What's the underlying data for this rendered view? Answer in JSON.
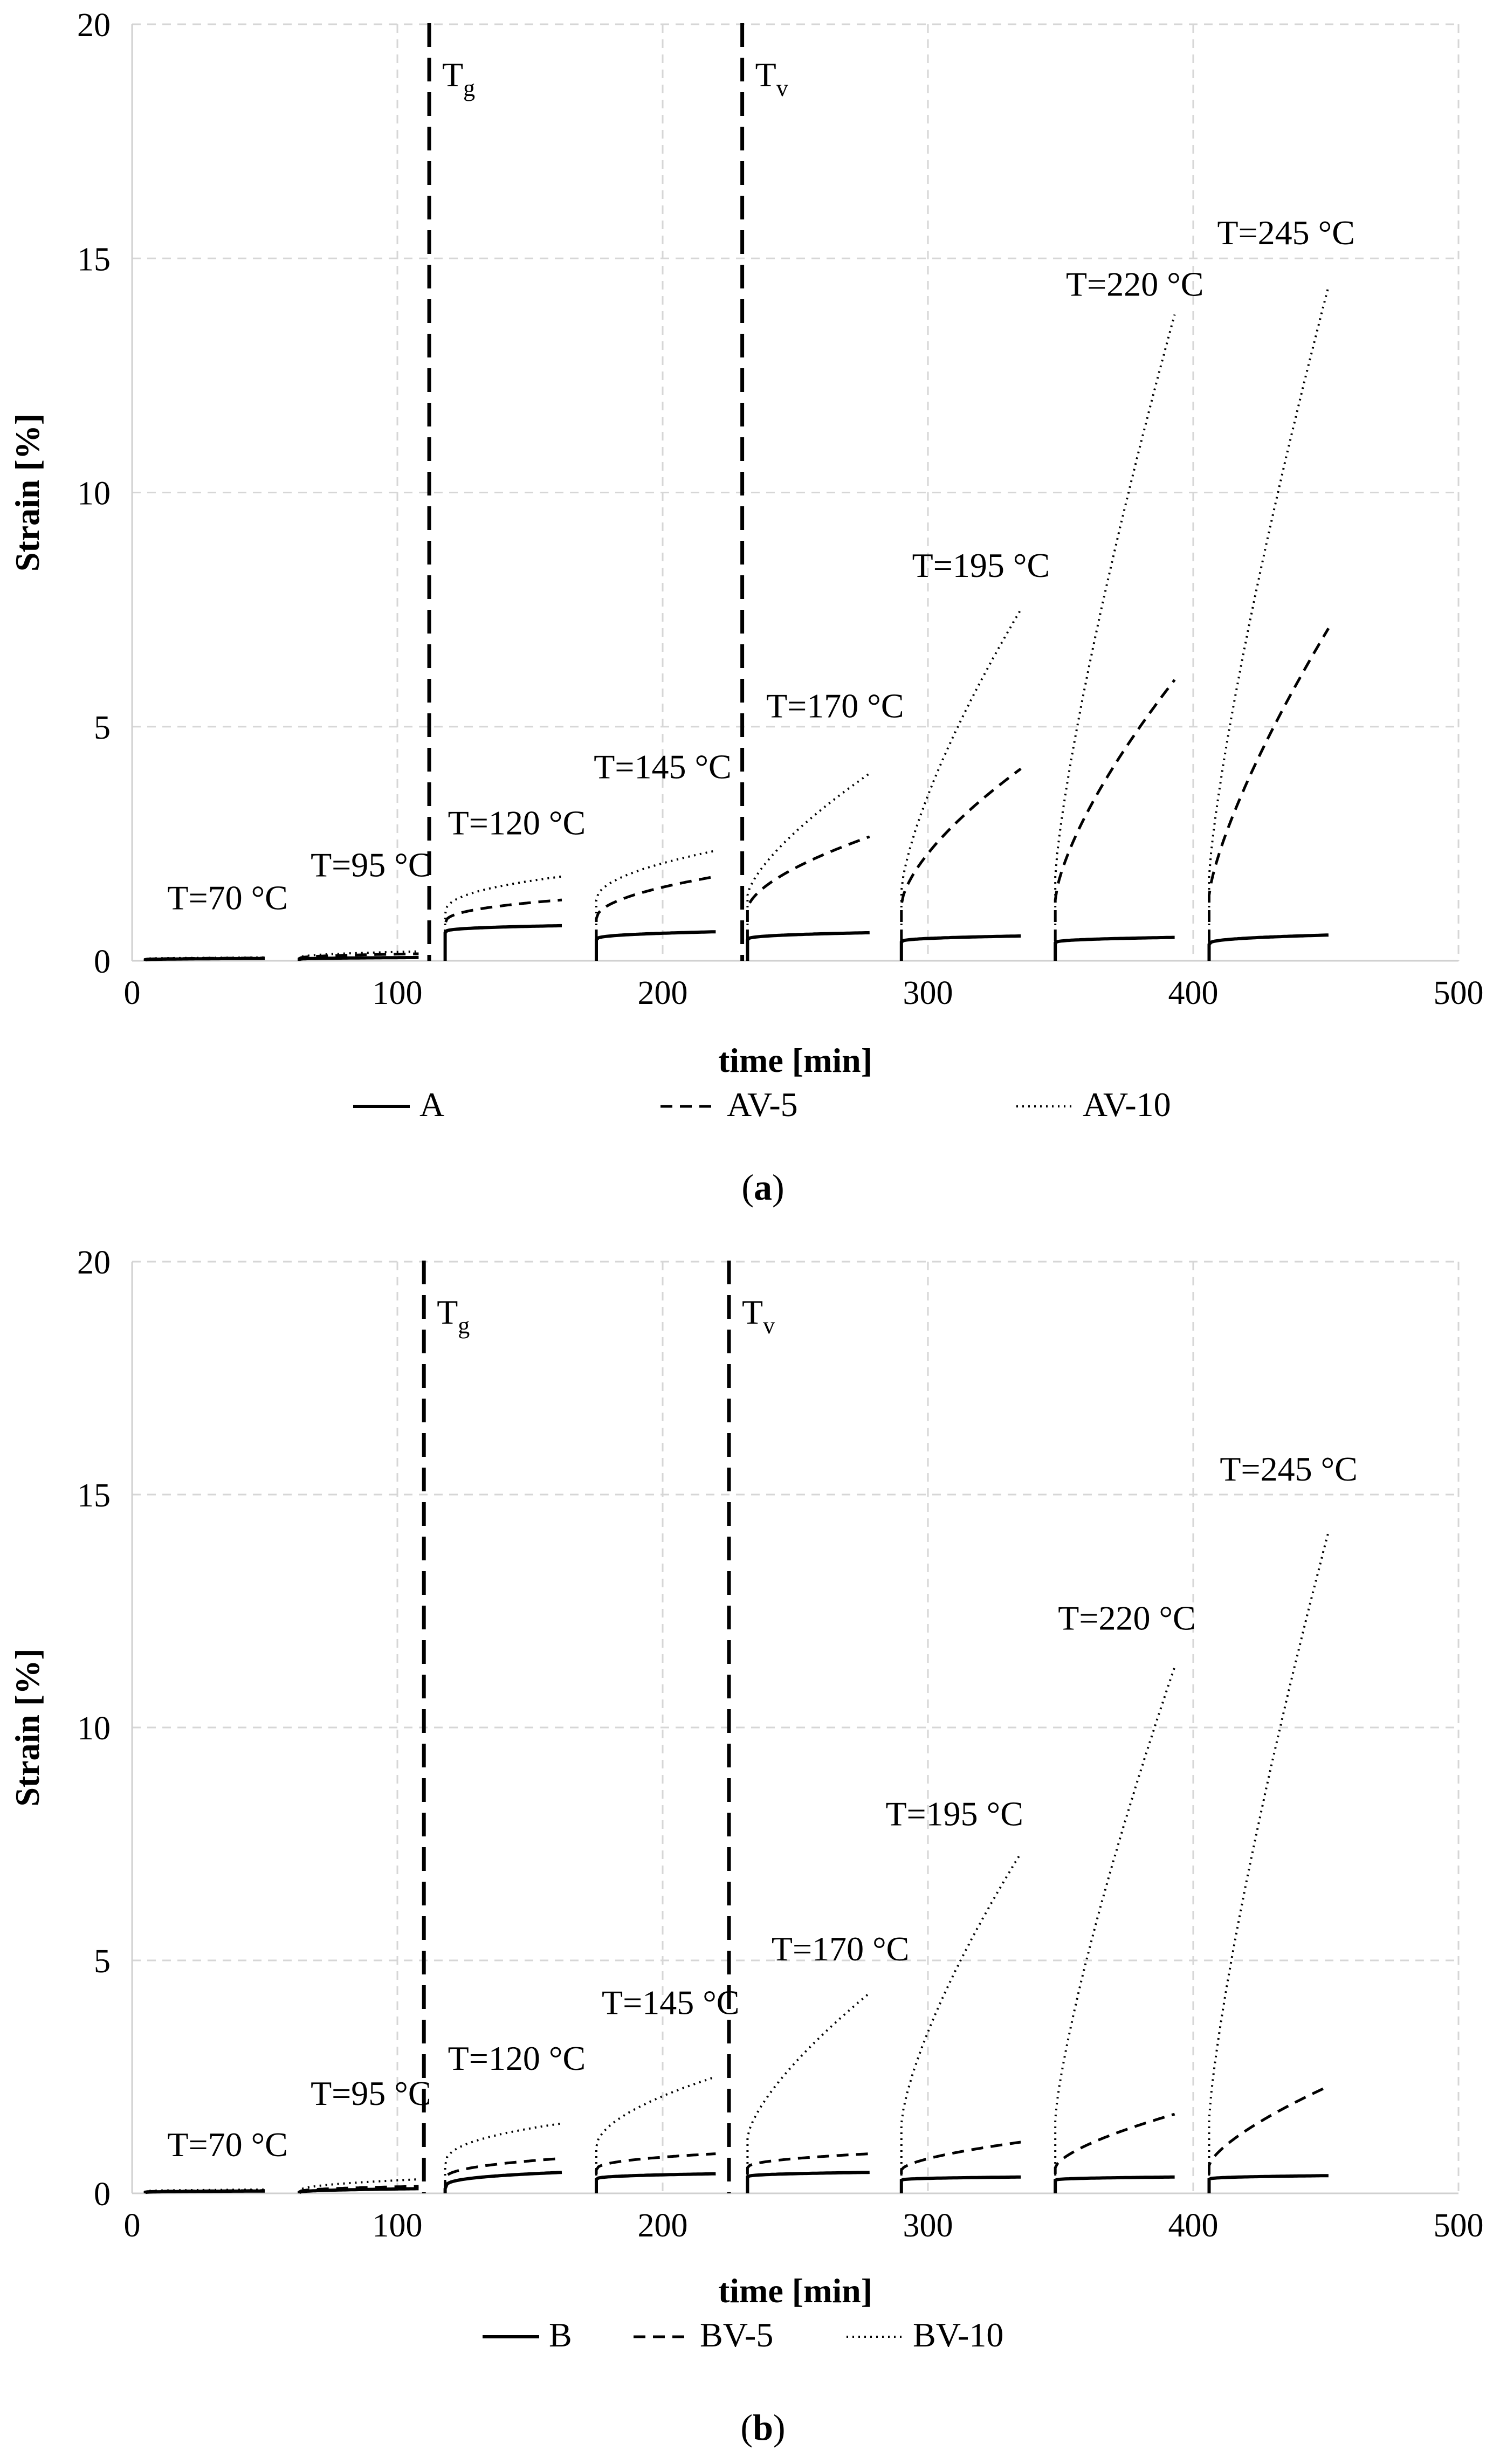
{
  "chart_data": [
    {
      "type": "line",
      "caption_letter": "a",
      "xlabel": "time [min]",
      "ylabel": "Strain [%]",
      "xlim": [
        0,
        500
      ],
      "ylim": [
        0,
        20
      ],
      "x_ticks": [
        0,
        100,
        200,
        300,
        400,
        500
      ],
      "y_ticks": [
        0,
        5,
        10,
        15,
        20
      ],
      "x_tick_labels": [
        "0",
        "100",
        "200",
        "300",
        "400",
        "500"
      ],
      "y_tick_labels": [
        "0",
        "5",
        "10",
        "15",
        "20"
      ],
      "grid": true,
      "vertical_lines": [
        {
          "x": 112,
          "label": "T",
          "subscript": "g"
        },
        {
          "x": 230,
          "label": "T",
          "subscript": "v"
        }
      ],
      "annotations": [
        {
          "text": "T=70 °C",
          "x": 36,
          "y": 1.1
        },
        {
          "text": "T=95 °C",
          "x": 90,
          "y": 1.8
        },
        {
          "text": "T=120 °C",
          "x": 145,
          "y": 2.7
        },
        {
          "text": "T=145 °C",
          "x": 200,
          "y": 3.9
        },
        {
          "text": "T=170 °C",
          "x": 265,
          "y": 5.2
        },
        {
          "text": "T=195 °C",
          "x": 320,
          "y": 8.2
        },
        {
          "text": "T=220 °C",
          "x": 378,
          "y": 14.2
        },
        {
          "text": "T=245 °C",
          "x": 435,
          "y": 15.3
        }
      ],
      "legend_position": "bottom",
      "series": [
        {
          "name": "A",
          "style": "solid",
          "segments": [
            {
              "x_start": 5,
              "x_end": 50,
              "y_start": 0.02,
              "y_end": 0.05,
              "exp": 0.35
            },
            {
              "x_start": 63,
              "x_end": 108,
              "y_start": 0.03,
              "y_end": 0.07,
              "exp": 0.35
            },
            {
              "x_start": 118,
              "x_end": 162,
              "y_start": 0.6,
              "y_end": 0.75,
              "exp": 0.3
            },
            {
              "x_start": 175,
              "x_end": 220,
              "y_start": 0.45,
              "y_end": 0.62,
              "exp": 0.35
            },
            {
              "x_start": 232,
              "x_end": 278,
              "y_start": 0.45,
              "y_end": 0.6,
              "exp": 0.35
            },
            {
              "x_start": 290,
              "x_end": 335,
              "y_start": 0.4,
              "y_end": 0.53,
              "exp": 0.35
            },
            {
              "x_start": 348,
              "x_end": 393,
              "y_start": 0.38,
              "y_end": 0.5,
              "exp": 0.35
            },
            {
              "x_start": 406,
              "x_end": 451,
              "y_start": 0.35,
              "y_end": 0.55,
              "exp": 0.35
            }
          ]
        },
        {
          "name": "AV-5",
          "style": "dashed",
          "segments": [
            {
              "x_start": 5,
              "x_end": 50,
              "y_start": 0.03,
              "y_end": 0.06,
              "exp": 0.35
            },
            {
              "x_start": 63,
              "x_end": 108,
              "y_start": 0.05,
              "y_end": 0.15,
              "exp": 0.4
            },
            {
              "x_start": 118,
              "x_end": 162,
              "y_start": 0.8,
              "y_end": 1.3,
              "exp": 0.4
            },
            {
              "x_start": 175,
              "x_end": 220,
              "y_start": 0.9,
              "y_end": 1.8,
              "exp": 0.5
            },
            {
              "x_start": 232,
              "x_end": 278,
              "y_start": 1.1,
              "y_end": 2.65,
              "exp": 0.6
            },
            {
              "x_start": 290,
              "x_end": 335,
              "y_start": 1.2,
              "y_end": 4.1,
              "exp": 0.65
            },
            {
              "x_start": 348,
              "x_end": 393,
              "y_start": 1.3,
              "y_end": 6.0,
              "exp": 0.7
            },
            {
              "x_start": 406,
              "x_end": 451,
              "y_start": 1.4,
              "y_end": 7.1,
              "exp": 0.75
            }
          ]
        },
        {
          "name": "AV-10",
          "style": "dotted",
          "segments": [
            {
              "x_start": 5,
              "x_end": 50,
              "y_start": 0.04,
              "y_end": 0.07,
              "exp": 0.35
            },
            {
              "x_start": 63,
              "x_end": 108,
              "y_start": 0.06,
              "y_end": 0.2,
              "exp": 0.4
            },
            {
              "x_start": 118,
              "x_end": 162,
              "y_start": 1.0,
              "y_end": 1.8,
              "exp": 0.4
            },
            {
              "x_start": 175,
              "x_end": 220,
              "y_start": 1.3,
              "y_end": 2.35,
              "exp": 0.5
            },
            {
              "x_start": 232,
              "x_end": 278,
              "y_start": 1.4,
              "y_end": 4.0,
              "exp": 0.7
            },
            {
              "x_start": 290,
              "x_end": 335,
              "y_start": 1.5,
              "y_end": 7.5,
              "exp": 0.72
            },
            {
              "x_start": 348,
              "x_end": 393,
              "y_start": 1.8,
              "y_end": 13.8,
              "exp": 0.78
            },
            {
              "x_start": 406,
              "x_end": 451,
              "y_start": 1.8,
              "y_end": 14.4,
              "exp": 0.78
            }
          ]
        }
      ]
    },
    {
      "type": "line",
      "caption_letter": "b",
      "xlabel": "time [min]",
      "ylabel": "Strain [%]",
      "xlim": [
        0,
        500
      ],
      "ylim": [
        0,
        20
      ],
      "x_ticks": [
        0,
        100,
        200,
        300,
        400,
        500
      ],
      "y_ticks": [
        0,
        5,
        10,
        15,
        20
      ],
      "x_tick_labels": [
        "0",
        "100",
        "200",
        "300",
        "400",
        "500"
      ],
      "y_tick_labels": [
        "0",
        "5",
        "10",
        "15",
        "20"
      ],
      "grid": true,
      "vertical_lines": [
        {
          "x": 110,
          "label": "T",
          "subscript": "g"
        },
        {
          "x": 225,
          "label": "T",
          "subscript": "v"
        }
      ],
      "annotations": [
        {
          "text": "T=70 °C",
          "x": 36,
          "y": 0.8
        },
        {
          "text": "T=95 °C",
          "x": 90,
          "y": 1.9
        },
        {
          "text": "T=120 °C",
          "x": 145,
          "y": 2.65
        },
        {
          "text": "T=145 °C",
          "x": 203,
          "y": 3.85
        },
        {
          "text": "T=170 °C",
          "x": 267,
          "y": 5.0
        },
        {
          "text": "T=195 °C",
          "x": 310,
          "y": 7.9
        },
        {
          "text": "T=220 °C",
          "x": 375,
          "y": 12.1
        },
        {
          "text": "T=245 °C",
          "x": 436,
          "y": 15.3
        }
      ],
      "legend_position": "bottom",
      "series": [
        {
          "name": "B",
          "style": "solid",
          "segments": [
            {
              "x_start": 5,
              "x_end": 50,
              "y_start": 0.02,
              "y_end": 0.05,
              "exp": 0.35
            },
            {
              "x_start": 63,
              "x_end": 108,
              "y_start": 0.02,
              "y_end": 0.1,
              "exp": 0.4
            },
            {
              "x_start": 118,
              "x_end": 162,
              "y_start": 0.1,
              "y_end": 0.45,
              "exp": 0.3
            },
            {
              "x_start": 175,
              "x_end": 220,
              "y_start": 0.3,
              "y_end": 0.42,
              "exp": 0.35
            },
            {
              "x_start": 232,
              "x_end": 278,
              "y_start": 0.35,
              "y_end": 0.45,
              "exp": 0.35
            },
            {
              "x_start": 290,
              "x_end": 335,
              "y_start": 0.28,
              "y_end": 0.35,
              "exp": 0.35
            },
            {
              "x_start": 348,
              "x_end": 393,
              "y_start": 0.28,
              "y_end": 0.35,
              "exp": 0.35
            },
            {
              "x_start": 406,
              "x_end": 451,
              "y_start": 0.3,
              "y_end": 0.38,
              "exp": 0.35
            }
          ]
        },
        {
          "name": "BV-5",
          "style": "dashed",
          "segments": [
            {
              "x_start": 5,
              "x_end": 50,
              "y_start": 0.03,
              "y_end": 0.06,
              "exp": 0.35
            },
            {
              "x_start": 63,
              "x_end": 108,
              "y_start": 0.03,
              "y_end": 0.15,
              "exp": 0.4
            },
            {
              "x_start": 118,
              "x_end": 162,
              "y_start": 0.3,
              "y_end": 0.75,
              "exp": 0.4
            },
            {
              "x_start": 175,
              "x_end": 220,
              "y_start": 0.5,
              "y_end": 0.85,
              "exp": 0.4
            },
            {
              "x_start": 232,
              "x_end": 278,
              "y_start": 0.55,
              "y_end": 0.85,
              "exp": 0.45
            },
            {
              "x_start": 290,
              "x_end": 335,
              "y_start": 0.5,
              "y_end": 1.1,
              "exp": 0.6
            },
            {
              "x_start": 348,
              "x_end": 393,
              "y_start": 0.55,
              "y_end": 1.7,
              "exp": 0.65
            },
            {
              "x_start": 406,
              "x_end": 451,
              "y_start": 0.6,
              "y_end": 2.3,
              "exp": 0.7
            }
          ]
        },
        {
          "name": "BV-10",
          "style": "dotted",
          "segments": [
            {
              "x_start": 5,
              "x_end": 50,
              "y_start": 0.04,
              "y_end": 0.08,
              "exp": 0.35
            },
            {
              "x_start": 63,
              "x_end": 108,
              "y_start": 0.05,
              "y_end": 0.3,
              "exp": 0.45
            },
            {
              "x_start": 118,
              "x_end": 162,
              "y_start": 0.6,
              "y_end": 1.5,
              "exp": 0.4
            },
            {
              "x_start": 175,
              "x_end": 220,
              "y_start": 1.0,
              "y_end": 2.5,
              "exp": 0.55
            },
            {
              "x_start": 232,
              "x_end": 278,
              "y_start": 1.2,
              "y_end": 4.3,
              "exp": 0.7
            },
            {
              "x_start": 290,
              "x_end": 335,
              "y_start": 1.5,
              "y_end": 7.3,
              "exp": 0.72
            },
            {
              "x_start": 348,
              "x_end": 393,
              "y_start": 1.6,
              "y_end": 11.3,
              "exp": 0.78
            },
            {
              "x_start": 406,
              "x_end": 451,
              "y_start": 1.6,
              "y_end": 14.2,
              "exp": 0.78
            }
          ]
        }
      ]
    }
  ]
}
